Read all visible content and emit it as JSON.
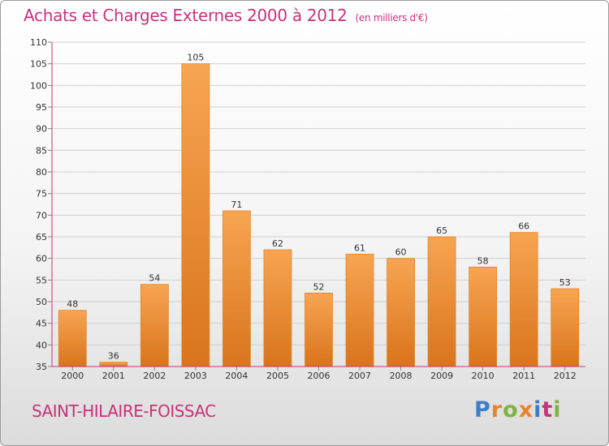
{
  "title": "Achats et Charges Externes 2000 à 2012",
  "unit": "(en milliers d'€)",
  "commune": "SAINT-HILAIRE-FOISSAC",
  "logo": {
    "text": "Proxiti",
    "colors": [
      "#3c7fc7",
      "#e8842c",
      "#7cb342",
      "#e8842c",
      "#3c7fc7",
      "#c8327a",
      "#7cb342"
    ]
  },
  "colors": {
    "title": "#c8327a",
    "bar_light": "#f7a552",
    "bar_dark": "#d9741c",
    "axis": "#c8327a",
    "grid": "#d0d0d0"
  },
  "chart_data": {
    "type": "bar",
    "title": "Achats et Charges Externes 2000 à 2012",
    "subtitle": "(en milliers d'€)",
    "categories": [
      "2000",
      "2001",
      "2002",
      "2003",
      "2004",
      "2005",
      "2006",
      "2007",
      "2008",
      "2009",
      "2010",
      "2011",
      "2012"
    ],
    "values": [
      48,
      36,
      54,
      105,
      71,
      62,
      52,
      61,
      60,
      65,
      58,
      66,
      53
    ],
    "ylim": [
      35,
      110
    ],
    "yticks": [
      35,
      40,
      45,
      50,
      55,
      60,
      65,
      70,
      75,
      80,
      85,
      90,
      95,
      100,
      105,
      110
    ],
    "grid": true,
    "data_labels": true
  }
}
